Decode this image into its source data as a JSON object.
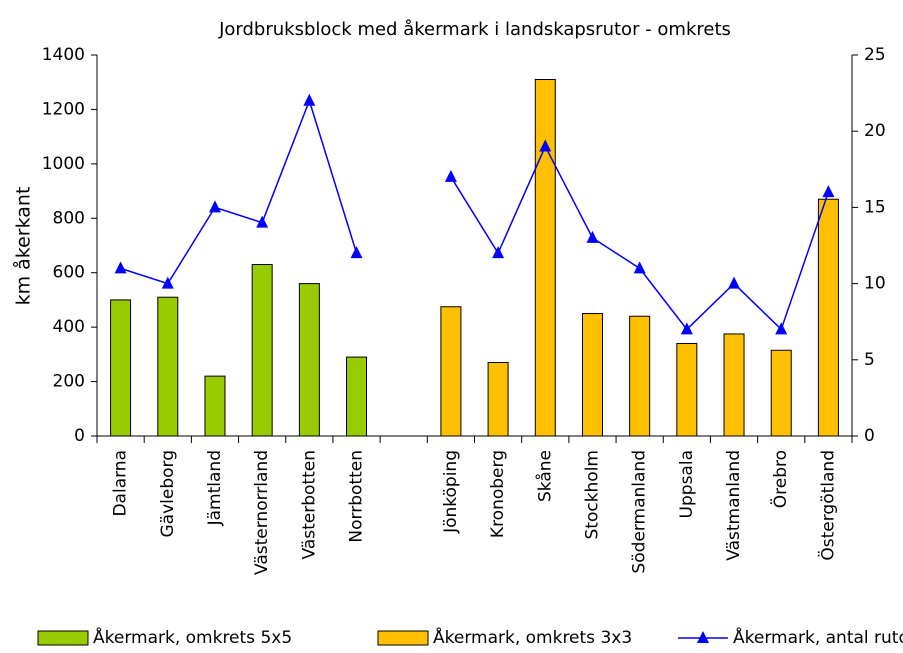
{
  "chart_data": {
    "type": "bar-line",
    "title": "Jordbruksblock med åkermark i landskapsrutor - omkrets",
    "y_label": "km åkerkant",
    "categories": [
      "Dalarna",
      "Gävleborg",
      "Jämtland",
      "Västernorrland",
      "Västerbotten",
      "Norrbotten",
      null,
      "Jönköping",
      "Kronoberg",
      "Skåne",
      "Stockholm",
      "Södermanland",
      "Uppsala",
      "Västmanland",
      "Örebro",
      "Östergötland"
    ],
    "series": [
      {
        "name": "Åkermark, omkrets 5x5",
        "type": "bar",
        "color": "#99cc00",
        "values": [
          500,
          510,
          220,
          630,
          560,
          290,
          null,
          null,
          null,
          null,
          null,
          null,
          null,
          null,
          null,
          null
        ]
      },
      {
        "name": "Åkermark, omkrets 3x3",
        "type": "bar",
        "color": "#ffc000",
        "values": [
          null,
          null,
          null,
          null,
          null,
          null,
          null,
          475,
          270,
          1310,
          450,
          440,
          340,
          375,
          315,
          870
        ]
      },
      {
        "name": "Åkermark, antal rutor",
        "type": "line",
        "axis": "y2",
        "color": "#0000ff",
        "values": [
          11,
          10,
          15,
          14,
          22,
          12,
          null,
          17,
          12,
          19,
          13,
          11,
          7,
          10,
          7,
          16
        ]
      }
    ],
    "ylim": [
      0,
      1400
    ],
    "yticks": [
      0,
      200,
      400,
      600,
      800,
      1000,
      1200,
      1400
    ],
    "y2lim": [
      0,
      25
    ],
    "y2ticks": [
      0,
      5,
      10,
      15,
      20,
      25
    ],
    "legend": "bottom"
  }
}
